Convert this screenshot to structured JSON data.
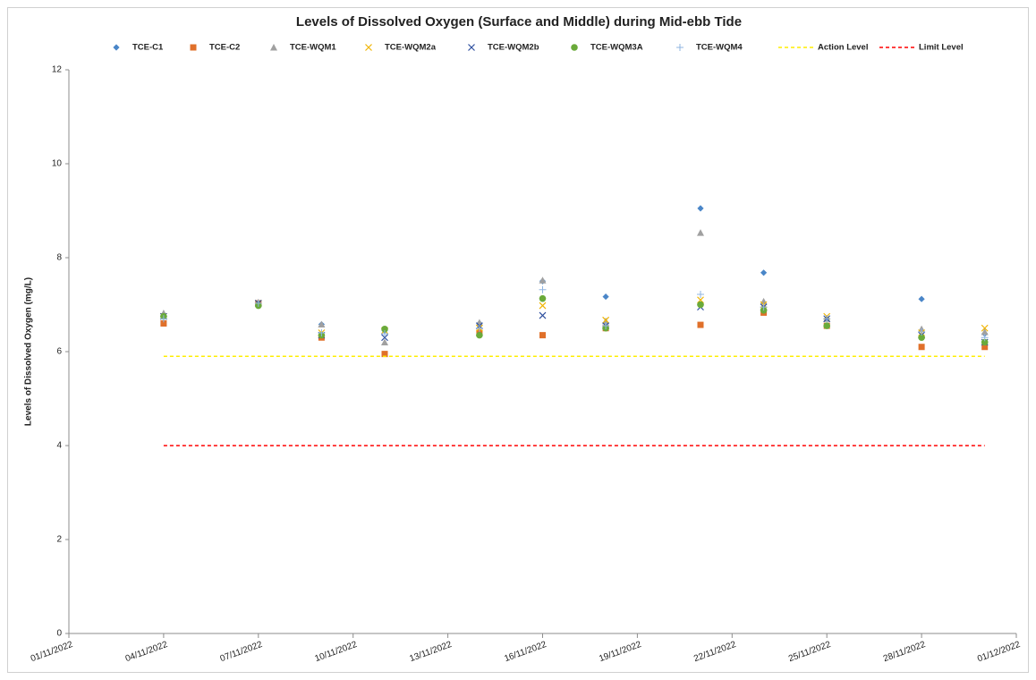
{
  "chart_data": {
    "type": "scatter",
    "title": "Levels of Dissolved Oxygen (Surface and Middle) during Mid-ebb Tide",
    "y_label": "Levels of Dissolved Oxygen (mg/L)",
    "x": [
      "04/11/2022",
      "07/11/2022",
      "09/11/2022",
      "11/11/2022",
      "14/11/2022",
      "16/11/2022",
      "18/11/2022",
      "21/11/2022",
      "23/11/2022",
      "25/11/2022",
      "28/11/2022",
      "30/11/2022"
    ],
    "series": [
      {
        "name": "TCE-C1",
        "color": "#4a86c8",
        "marker": "diamond",
        "values": [
          6.75,
          7.03,
          6.58,
          6.45,
          6.6,
          7.5,
          7.17,
          9.05,
          7.68,
          6.7,
          7.12,
          6.38
        ]
      },
      {
        "name": "TCE-C2",
        "color": "#e0702a",
        "marker": "square",
        "values": [
          6.6,
          7.03,
          6.3,
          5.95,
          6.4,
          6.35,
          6.5,
          6.57,
          6.83,
          6.55,
          6.1,
          6.1
        ]
      },
      {
        "name": "TCE-WQM1",
        "color": "#a0a0a0",
        "marker": "triangle",
        "values": [
          6.82,
          7.05,
          6.58,
          6.2,
          6.62,
          7.52,
          6.65,
          8.53,
          7.07,
          6.7,
          6.48,
          6.42
        ]
      },
      {
        "name": "TCE-WQM2a",
        "color": "#f0b400",
        "marker": "x",
        "values": [
          6.75,
          7.03,
          6.4,
          6.45,
          6.5,
          6.98,
          6.67,
          7.1,
          7.0,
          6.75,
          6.4,
          6.5
        ]
      },
      {
        "name": "TCE-WQM2b",
        "color": "#2e4f9e",
        "marker": "x",
        "values": [
          6.75,
          7.03,
          6.35,
          6.3,
          6.55,
          6.77,
          6.55,
          6.95,
          6.95,
          6.7,
          6.35,
          6.2
        ]
      },
      {
        "name": "TCE-WQM3A",
        "color": "#6aaa3a",
        "marker": "circle",
        "values": [
          6.75,
          6.98,
          6.35,
          6.48,
          6.35,
          7.13,
          6.5,
          7.0,
          6.88,
          6.55,
          6.3,
          6.2
        ]
      },
      {
        "name": "TCE-WQM4",
        "color": "#8fb4e0",
        "marker": "plus",
        "values": [
          6.7,
          7.03,
          6.4,
          6.38,
          6.5,
          7.32,
          6.55,
          7.22,
          6.95,
          6.7,
          6.42,
          6.3
        ]
      },
      {
        "name": "Action Level",
        "color": "#ffee00",
        "marker": "dashed-line",
        "values": [
          5.9,
          5.9,
          5.9,
          5.9,
          5.9,
          5.9,
          5.9,
          5.9,
          5.9,
          5.9,
          5.9,
          5.9
        ]
      },
      {
        "name": "Limit Level",
        "color": "#ff0000",
        "marker": "dashed-line",
        "values": [
          4,
          4,
          4,
          4,
          4,
          4,
          4,
          4,
          4,
          4,
          4,
          4
        ]
      }
    ],
    "xlim": [
      "01/11/2022",
      "01/12/2022"
    ],
    "xticks": [
      "01/11/2022",
      "04/11/2022",
      "07/11/2022",
      "10/11/2022",
      "13/11/2022",
      "16/11/2022",
      "19/11/2022",
      "22/11/2022",
      "25/11/2022",
      "28/11/2022",
      "01/12/2022"
    ],
    "ylim": [
      0,
      12
    ],
    "yticks": [
      0,
      2,
      4,
      6,
      8,
      10,
      12
    ],
    "grid": false,
    "legend": "top"
  }
}
